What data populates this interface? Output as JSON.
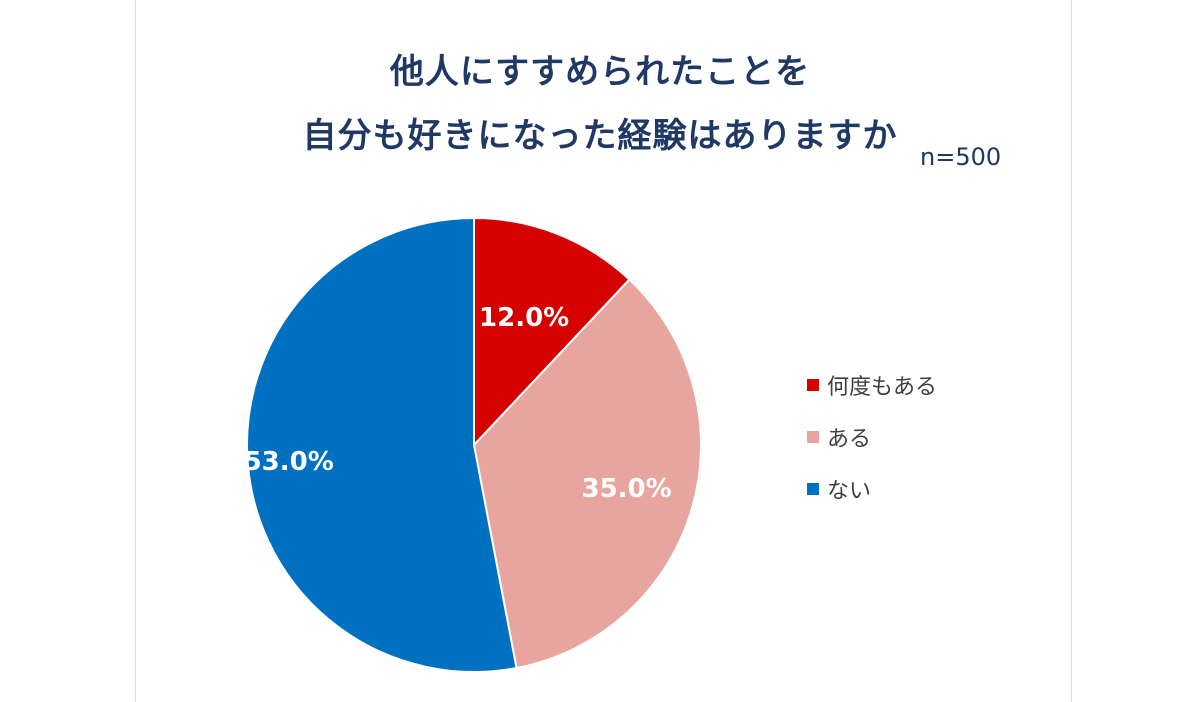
{
  "chart_data": {
    "type": "pie",
    "title_lines": [
      "他人にすすめられたことを",
      "自分も好きになった経験はありますか"
    ],
    "note": "n=500",
    "series": [
      {
        "label": "何度もある",
        "value": 12.0,
        "display": "12.0%",
        "color": "#d50000"
      },
      {
        "label": "ある",
        "value": 35.0,
        "display": "35.0%",
        "color": "#e8a59f"
      },
      {
        "label": "ない",
        "value": 53.0,
        "display": "53.0%",
        "color": "#0070c0"
      }
    ],
    "start": "12 o'clock",
    "direction": "clockwise",
    "legend_position": "right"
  }
}
